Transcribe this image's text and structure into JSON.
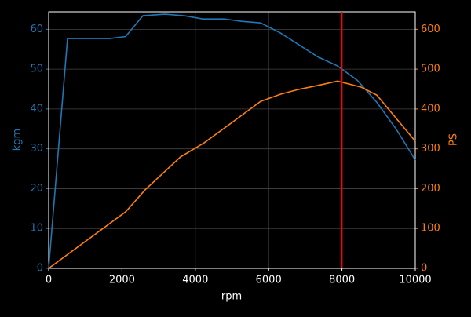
{
  "chart_data": {
    "type": "line",
    "x_label": "rpm",
    "y_label": "kgm",
    "y2_label": "PS",
    "xlim": [
      0,
      10000
    ],
    "xticks": [
      0,
      2000,
      4000,
      6000,
      8000,
      10000
    ],
    "ylim": [
      0,
      64.4
    ],
    "yticks": [
      0,
      10,
      20,
      30,
      40,
      50,
      60
    ],
    "y2lim": [
      0,
      644
    ],
    "y2ticks": [
      0,
      100,
      200,
      300,
      400,
      500,
      600
    ],
    "grid": true,
    "series": [
      {
        "name": "kgm",
        "color": "#1f77b4",
        "x": [
          0,
          514,
          1670,
          2100,
          2570,
          3170,
          3700,
          4200,
          4775,
          5270,
          5780,
          6320,
          7340,
          7880,
          8420,
          8950,
          9490,
          10000
        ],
        "values": [
          0,
          57.7,
          57.7,
          58.2,
          63.4,
          63.8,
          63.4,
          62.6,
          62.6,
          62.0,
          61.6,
          59.1,
          53.1,
          50.8,
          47.2,
          41.7,
          34.8,
          27.2
        ]
      },
      {
        "name": "PS",
        "color": "#ff7f0e",
        "axis": "y2",
        "x": [
          0,
          2100,
          2630,
          3600,
          4240,
          4880,
          5780,
          6320,
          6810,
          7340,
          7880,
          8520,
          8950,
          10000
        ],
        "values": [
          0,
          142,
          197,
          280,
          315,
          358,
          419,
          437,
          449,
          459,
          470,
          455,
          435,
          319
        ]
      }
    ],
    "vline": {
      "x": 8000,
      "color": "#ff0000"
    }
  }
}
